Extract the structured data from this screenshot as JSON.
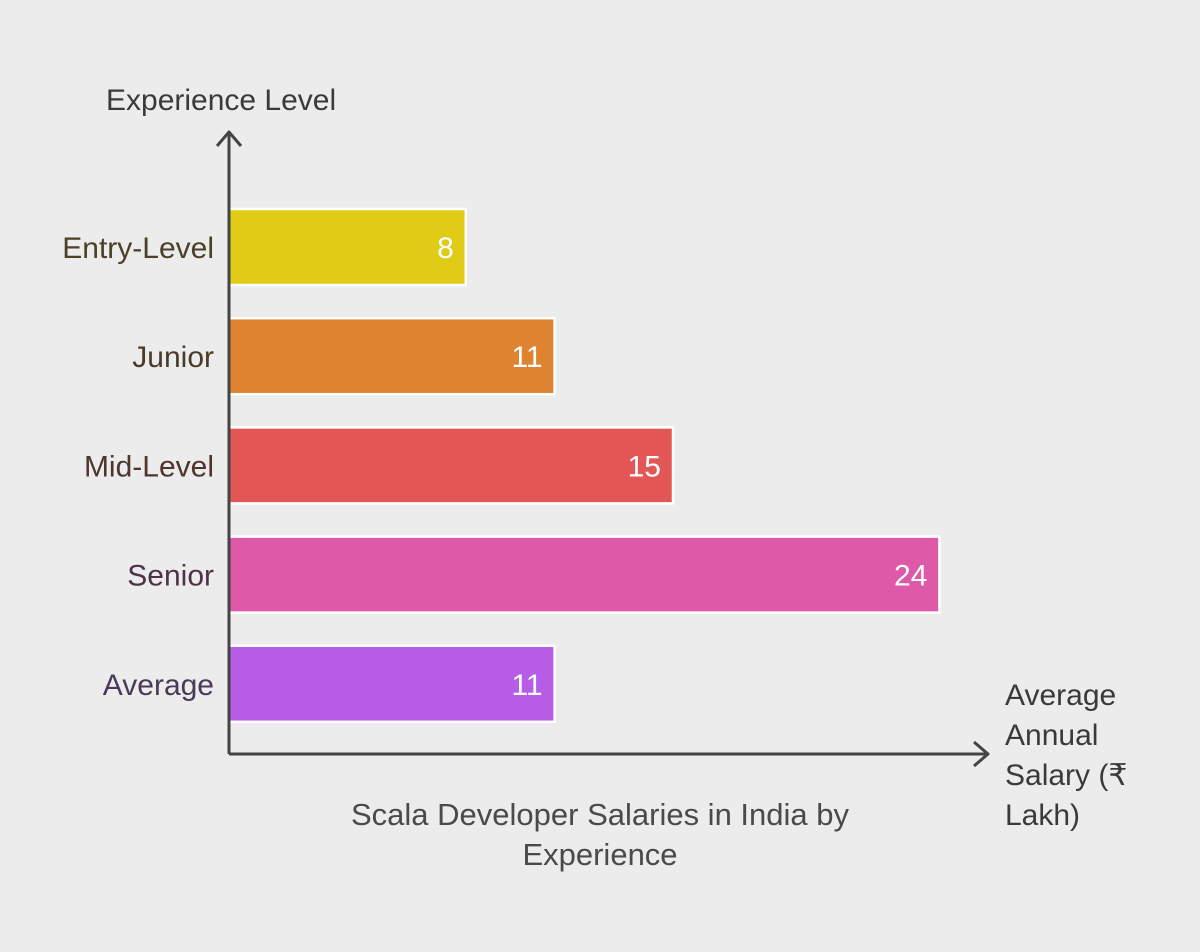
{
  "chart_data": {
    "type": "bar",
    "orientation": "horizontal",
    "title": "Scala Developer Salaries in India by Experience",
    "ylabel": "Experience Level",
    "xlabel": "Average Annual Salary (₹ Lakh)",
    "categories": [
      "Entry-Level",
      "Junior",
      "Mid-Level",
      "Senior",
      "Average"
    ],
    "values": [
      8,
      11,
      15,
      24,
      11
    ],
    "value_labels": [
      "8",
      "11",
      "15",
      "24",
      "11"
    ],
    "colors": [
      "#e0cc16",
      "#de8330",
      "#e35656",
      "#de5aa8",
      "#b65ce6"
    ],
    "label_colors": [
      "#4a4128",
      "#4a3a2a",
      "#4e3530",
      "#4e3346",
      "#4a3a5a"
    ],
    "grid": false,
    "legend": "none"
  }
}
